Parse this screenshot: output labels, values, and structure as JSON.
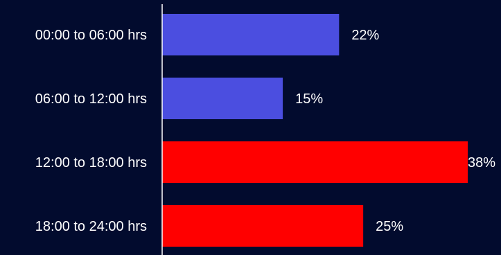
{
  "colors": {
    "background": "#020b2e",
    "axis": "#ffffff",
    "text": "#ffffff"
  },
  "chart_data": {
    "type": "bar",
    "orientation": "horizontal",
    "title": "",
    "xlabel": "",
    "ylabel": "",
    "categories": [
      "00:00 to 06:00 hrs",
      "06:00 to 12:00 hrs",
      "12:00 to 18:00 hrs",
      "18:00 to 24:00 hrs"
    ],
    "values": [
      22,
      15,
      38,
      25
    ],
    "value_labels": [
      "22%",
      "15%",
      "38%",
      "25%"
    ],
    "bar_colors": [
      "#4b4ee0",
      "#4b4ee0",
      "#ff0000",
      "#ff0000"
    ],
    "xlim": [
      0,
      38
    ],
    "grid": false,
    "legend": "none"
  }
}
